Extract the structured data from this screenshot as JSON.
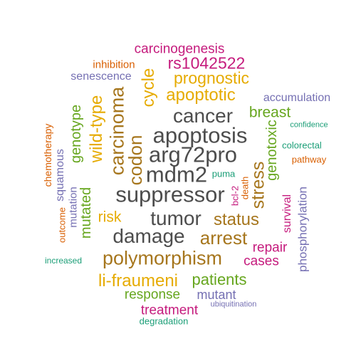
{
  "words": [
    {
      "text": "carcinogenesis",
      "color": "#c51b7d"
    },
    {
      "text": "rs1042522",
      "color": "#c51b7d"
    },
    {
      "text": "inhibition",
      "color": "#d95f02"
    },
    {
      "text": "senescence",
      "color": "#7570b3"
    },
    {
      "text": "prognostic",
      "color": "#e6ab02"
    },
    {
      "text": "apoptotic",
      "color": "#e6ab02"
    },
    {
      "text": "accumulation",
      "color": "#7570b3"
    },
    {
      "text": "cycle",
      "color": "#e6ab02"
    },
    {
      "text": "cancer",
      "color": "#4d4d4d"
    },
    {
      "text": "breast",
      "color": "#66a61e"
    },
    {
      "text": "carcinoma",
      "color": "#a6761d"
    },
    {
      "text": "wild-type",
      "color": "#e6ab02"
    },
    {
      "text": "genotype",
      "color": "#66a61e"
    },
    {
      "text": "apoptosis",
      "color": "#4d4d4d"
    },
    {
      "text": "confidence",
      "color": "#1b9e77"
    },
    {
      "text": "chemotherapy",
      "color": "#d95f02"
    },
    {
      "text": "colorectal",
      "color": "#1b9e77"
    },
    {
      "text": "genotoxic",
      "color": "#66a61e"
    },
    {
      "text": "codon",
      "color": "#a6761d"
    },
    {
      "text": "arg72pro",
      "color": "#4d4d4d"
    },
    {
      "text": "pathway",
      "color": "#d95f02"
    },
    {
      "text": "squamous",
      "color": "#7570b3"
    },
    {
      "text": "mutation",
      "color": "#7570b3"
    },
    {
      "text": "mdm2",
      "color": "#4d4d4d"
    },
    {
      "text": "puma",
      "color": "#1b9e77"
    },
    {
      "text": "stress",
      "color": "#a6761d"
    },
    {
      "text": "death",
      "color": "#d95f02"
    },
    {
      "text": "bcl-2",
      "color": "#c51b7d"
    },
    {
      "text": "phosphorylation",
      "color": "#7570b3"
    },
    {
      "text": "suppressor",
      "color": "#4d4d4d"
    },
    {
      "text": "outcome",
      "color": "#d95f02"
    },
    {
      "text": "mutated",
      "color": "#66a61e"
    },
    {
      "text": "survival",
      "color": "#c51b7d"
    },
    {
      "text": "risk",
      "color": "#e6ab02"
    },
    {
      "text": "tumor",
      "color": "#4d4d4d"
    },
    {
      "text": "status",
      "color": "#a6761d"
    },
    {
      "text": "damage",
      "color": "#4d4d4d"
    },
    {
      "text": "arrest",
      "color": "#a6761d"
    },
    {
      "text": "repair",
      "color": "#c51b7d"
    },
    {
      "text": "increased",
      "color": "#1b9e77"
    },
    {
      "text": "polymorphism",
      "color": "#a6761d"
    },
    {
      "text": "cases",
      "color": "#c51b7d"
    },
    {
      "text": "li-fraumeni",
      "color": "#e6ab02"
    },
    {
      "text": "patients",
      "color": "#66a61e"
    },
    {
      "text": "response",
      "color": "#66a61e"
    },
    {
      "text": "mutant",
      "color": "#7570b3"
    },
    {
      "text": "ubiquitination",
      "color": "#7570b3"
    },
    {
      "text": "treatment",
      "color": "#c51b7d"
    },
    {
      "text": "degradation",
      "color": "#1b9e77"
    }
  ]
}
